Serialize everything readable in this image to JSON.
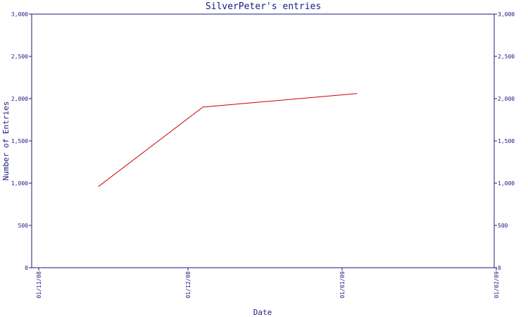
{
  "chart_data": {
    "type": "line",
    "title": "SilverPeter's entries",
    "xlabel": "Date",
    "ylabel": "Number of Entries",
    "x_ticks": [
      "01/11/08",
      "01/12/08",
      "01/01/09",
      "01/02/09"
    ],
    "y_ticks": [
      "0",
      "500",
      "1,000",
      "1,500",
      "2,000",
      "2,500",
      "3,000"
    ],
    "ylim": [
      0,
      3000
    ],
    "series": [
      {
        "x": [
          "2008-11-13",
          "2008-12-04",
          "2009-01-04"
        ],
        "values": [
          960,
          1900,
          2060
        ]
      }
    ],
    "grid": false,
    "colors": {
      "line": "#cc0000",
      "axes": "#1a1a80"
    }
  }
}
